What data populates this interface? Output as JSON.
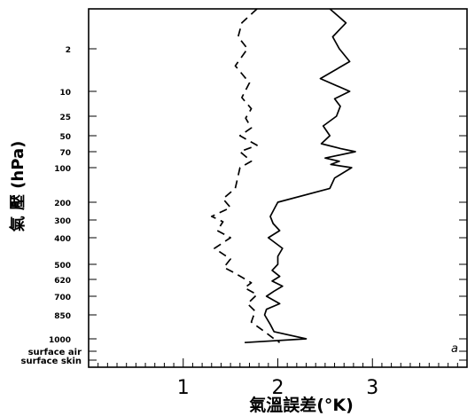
{
  "chart_data": {
    "type": "line",
    "title": "",
    "xlabel": "氣溫誤差(°K)",
    "ylabel": "氣 壓 (hPa)",
    "panel_label": "a",
    "xlim": [
      0,
      4
    ],
    "x_ticks": [
      {
        "value": 1,
        "label": "1"
      },
      {
        "value": 2,
        "label": "2"
      },
      {
        "value": 3,
        "label": "3"
      }
    ],
    "y_levels": [
      "",
      "2",
      "10",
      "25",
      "50",
      "70",
      "100",
      "200",
      "300",
      "400",
      "500",
      "620",
      "700",
      "850",
      "1000",
      "surface air",
      "surface skin"
    ],
    "y_tick_labels": [
      "2",
      "10",
      "25",
      "50",
      "70",
      "100",
      "200",
      "300",
      "400",
      "500",
      "620",
      "700",
      "850",
      "1000",
      "surface air",
      "surface skin"
    ],
    "grid": false,
    "series": [
      {
        "style": "dashed",
        "points": [
          [
            1.78,
            0.0
          ],
          [
            1.62,
            0.35
          ],
          [
            1.58,
            0.7
          ],
          [
            1.68,
            1.0
          ],
          [
            1.55,
            1.4
          ],
          [
            1.7,
            1.8
          ],
          [
            1.62,
            2.25
          ],
          [
            1.72,
            2.7
          ],
          [
            1.66,
            3.1
          ],
          [
            1.72,
            3.6
          ],
          [
            1.6,
            4.0
          ],
          [
            1.78,
            4.6
          ],
          [
            1.6,
            5.0
          ],
          [
            1.72,
            5.6
          ],
          [
            1.6,
            6.0
          ],
          [
            1.55,
            6.6
          ],
          [
            1.42,
            6.9
          ],
          [
            1.5,
            7.3
          ],
          [
            1.3,
            7.8
          ],
          [
            1.42,
            8.1
          ],
          [
            1.36,
            8.6
          ],
          [
            1.5,
            9.0
          ],
          [
            1.33,
            9.4
          ],
          [
            1.5,
            9.8
          ],
          [
            1.43,
            10.2
          ],
          [
            1.55,
            10.6
          ],
          [
            1.72,
            11.2
          ],
          [
            1.65,
            11.5
          ],
          [
            1.78,
            11.9
          ],
          [
            1.68,
            12.4
          ],
          [
            1.76,
            12.8
          ],
          [
            1.72,
            13.3
          ],
          [
            1.86,
            13.7
          ],
          [
            1.96,
            14.0
          ],
          [
            2.02,
            14.3
          ]
        ]
      },
      {
        "style": "solid",
        "points": [
          [
            2.55,
            0.0
          ],
          [
            2.72,
            0.35
          ],
          [
            2.58,
            0.7
          ],
          [
            2.65,
            1.0
          ],
          [
            2.76,
            1.3
          ],
          [
            2.45,
            1.7
          ],
          [
            2.76,
            2.0
          ],
          [
            2.6,
            2.3
          ],
          [
            2.66,
            2.6
          ],
          [
            2.62,
            3.0
          ],
          [
            2.48,
            3.5
          ],
          [
            2.55,
            4.0
          ],
          [
            2.46,
            4.5
          ],
          [
            2.66,
            4.8
          ],
          [
            2.82,
            5.0
          ],
          [
            2.5,
            5.4
          ],
          [
            2.65,
            5.6
          ],
          [
            2.56,
            5.8
          ],
          [
            2.78,
            6.0
          ],
          [
            2.6,
            6.3
          ],
          [
            2.55,
            6.6
          ],
          [
            2.0,
            7.0
          ],
          [
            1.96,
            7.4
          ],
          [
            1.92,
            7.8
          ],
          [
            1.95,
            8.2
          ],
          [
            2.02,
            8.6
          ],
          [
            1.9,
            9.0
          ],
          [
            2.05,
            9.4
          ],
          [
            2.0,
            9.7
          ],
          [
            2.0,
            10.0
          ],
          [
            1.94,
            10.4
          ],
          [
            2.02,
            10.8
          ],
          [
            1.94,
            11.1
          ],
          [
            2.05,
            11.4
          ],
          [
            1.96,
            11.7
          ],
          [
            1.88,
            12.0
          ],
          [
            2.02,
            12.4
          ],
          [
            1.88,
            12.7
          ],
          [
            1.86,
            13.0
          ],
          [
            1.92,
            13.4
          ],
          [
            1.96,
            13.7
          ],
          [
            2.3,
            14.0
          ],
          [
            1.65,
            14.3
          ]
        ]
      }
    ]
  }
}
